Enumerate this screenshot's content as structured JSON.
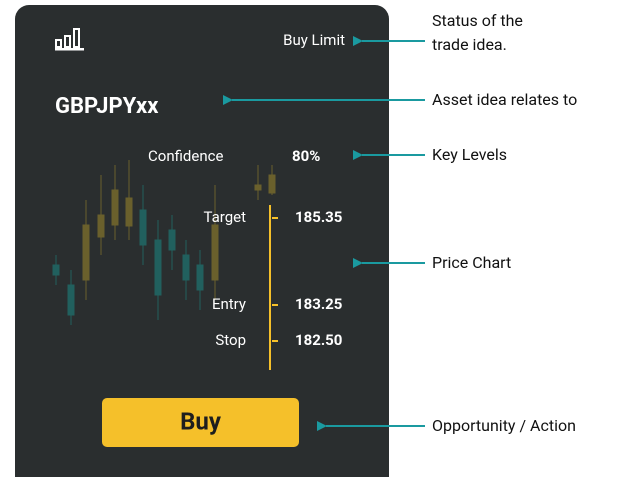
{
  "card": {
    "status": "Buy Limit",
    "asset": "GBPJPYxx",
    "confidence_label": "Confidence",
    "confidence_value": "80%",
    "levels": [
      {
        "label": "Target",
        "value": "185.35"
      },
      {
        "label": "Entry",
        "value": "183.25"
      },
      {
        "label": "Stop",
        "value": "182.50"
      }
    ],
    "button": "Buy"
  },
  "annotations": {
    "status": [
      "Status of the",
      "trade idea."
    ],
    "asset": "Asset idea relates to",
    "levels": "Key Levels",
    "chart": "Price Chart",
    "action": "Opportunity / Action"
  }
}
